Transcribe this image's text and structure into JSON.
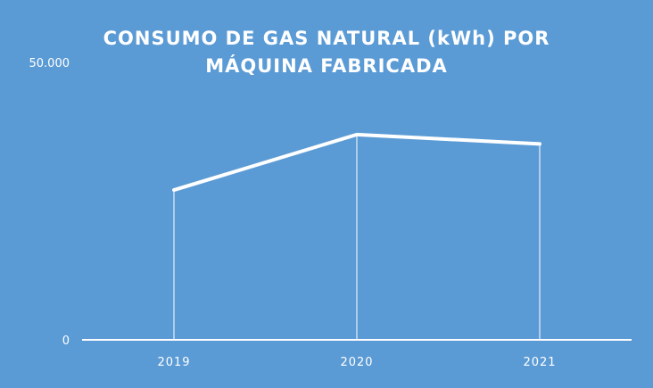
{
  "chart_data": {
    "type": "line",
    "title_lines": [
      "CONSUMO DE GAS NATURAL (kWh) POR",
      "MÁQUINA FABRICADA"
    ],
    "categories": [
      "2019",
      "2020",
      "2021"
    ],
    "values": [
      27000,
      37000,
      35300
    ],
    "y_tick_labels": [
      "50.000",
      "0"
    ],
    "y_ticks": [
      50000,
      0
    ],
    "ylim": [
      0,
      50000
    ],
    "grid": false,
    "drop_lines": true,
    "legend": "none",
    "colors": {
      "background": "#5b9bd5",
      "line": "#ffffff",
      "text": "#ffffff"
    }
  }
}
